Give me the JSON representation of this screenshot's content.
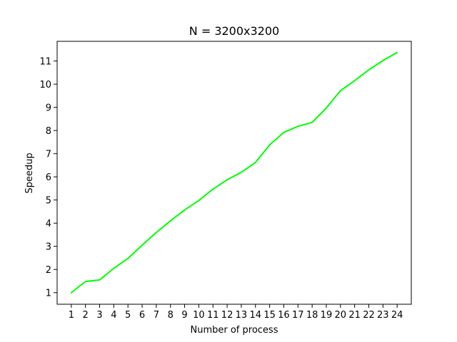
{
  "chart_data": {
    "type": "line",
    "title": "N = 3200x3200",
    "xlabel": "Number of process",
    "ylabel": "Speedup",
    "x": [
      1,
      2,
      3,
      4,
      5,
      6,
      7,
      8,
      9,
      10,
      11,
      12,
      13,
      14,
      15,
      16,
      17,
      18,
      19,
      20,
      21,
      22,
      23,
      24
    ],
    "series": [
      {
        "color": "#00ff00",
        "values": [
          1.0,
          1.48,
          1.55,
          2.05,
          2.48,
          3.05,
          3.6,
          4.1,
          4.57,
          4.98,
          5.47,
          5.87,
          6.2,
          6.62,
          7.38,
          7.92,
          8.18,
          8.35,
          8.97,
          9.72,
          10.15,
          10.62,
          11.02,
          11.37
        ]
      }
    ],
    "xlim": [
      0,
      25
    ],
    "ylim": [
      0.5,
      11.85
    ],
    "xticks": [
      1,
      2,
      3,
      4,
      5,
      6,
      7,
      8,
      9,
      10,
      11,
      12,
      13,
      14,
      15,
      16,
      17,
      18,
      19,
      20,
      21,
      22,
      23,
      24
    ],
    "yticks": [
      1,
      2,
      3,
      4,
      5,
      6,
      7,
      8,
      9,
      10,
      11
    ],
    "grid": false,
    "legend": "none"
  }
}
